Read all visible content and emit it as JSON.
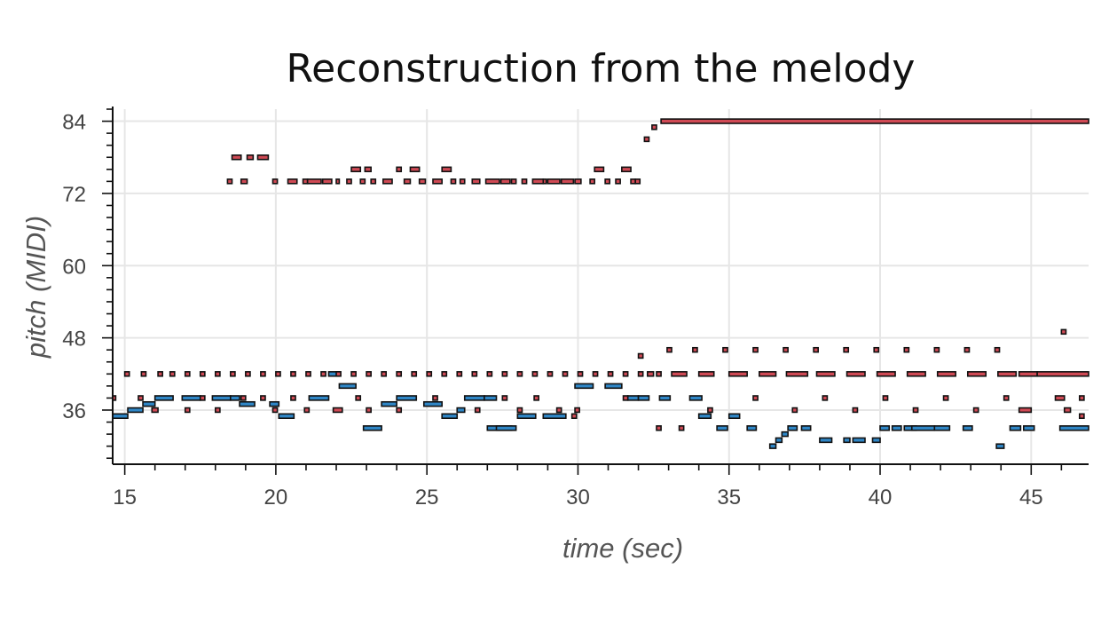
{
  "chart_data": {
    "type": "piano-roll",
    "title": "Reconstruction from the melody",
    "xlabel": "time (sec)",
    "ylabel": "pitch (MIDI)",
    "xlim": [
      14.6,
      46.9
    ],
    "ylim": [
      27,
      86
    ],
    "xticks": [
      15,
      20,
      25,
      30,
      35,
      40,
      45
    ],
    "yticks": [
      36,
      48,
      60,
      72,
      84
    ],
    "grid": true,
    "colors": {
      "melody": "#d04a55",
      "bass": "#2f86c6",
      "outline": "#111111",
      "grid": "#e6e6e6"
    },
    "series": [
      {
        "color_role": "melody",
        "notes": [
          [
            18.4,
            18.55,
            74
          ],
          [
            18.55,
            18.85,
            78
          ],
          [
            18.85,
            19.05,
            74
          ],
          [
            19.05,
            19.25,
            78
          ],
          [
            19.4,
            19.75,
            78
          ],
          [
            19.9,
            20.05,
            74
          ],
          [
            20.4,
            20.7,
            74
          ],
          [
            20.9,
            21.05,
            74
          ],
          [
            21.05,
            21.5,
            74
          ],
          [
            21.55,
            21.85,
            74
          ],
          [
            22.0,
            22.1,
            74
          ],
          [
            22.35,
            22.5,
            74
          ],
          [
            22.5,
            22.8,
            76
          ],
          [
            22.8,
            22.95,
            74
          ],
          [
            22.95,
            23.15,
            76
          ],
          [
            23.15,
            23.3,
            74
          ],
          [
            23.55,
            23.85,
            74
          ],
          [
            24.0,
            24.15,
            76
          ],
          [
            24.25,
            24.45,
            74
          ],
          [
            24.45,
            24.75,
            76
          ],
          [
            24.75,
            24.95,
            74
          ],
          [
            25.2,
            25.5,
            74
          ],
          [
            25.5,
            25.8,
            76
          ],
          [
            25.8,
            25.95,
            74
          ],
          [
            26.1,
            26.25,
            74
          ],
          [
            26.5,
            26.75,
            74
          ],
          [
            26.95,
            27.4,
            74
          ],
          [
            27.45,
            27.75,
            74
          ],
          [
            27.8,
            27.95,
            74
          ],
          [
            28.15,
            28.3,
            74
          ],
          [
            28.5,
            28.85,
            74
          ],
          [
            28.85,
            28.95,
            74
          ],
          [
            29.0,
            29.4,
            74
          ],
          [
            29.45,
            29.85,
            74
          ],
          [
            29.9,
            30.1,
            74
          ],
          [
            30.4,
            30.55,
            74
          ],
          [
            30.55,
            30.85,
            76
          ],
          [
            30.9,
            31.05,
            74
          ],
          [
            31.25,
            31.4,
            74
          ],
          [
            31.45,
            31.75,
            76
          ],
          [
            31.75,
            31.9,
            74
          ],
          [
            31.9,
            32.05,
            74
          ],
          [
            32.2,
            32.35,
            81
          ],
          [
            32.45,
            32.6,
            83
          ],
          [
            32.75,
            46.9,
            84
          ],
          [
            46.0,
            46.15,
            49
          ]
        ]
      },
      {
        "color_role": "bass",
        "notes": [
          [
            14.6,
            15.1,
            35
          ],
          [
            15.1,
            15.6,
            36
          ],
          [
            15.6,
            16.0,
            37
          ],
          [
            16.0,
            16.6,
            38
          ],
          [
            16.9,
            17.5,
            38
          ],
          [
            17.9,
            18.5,
            38
          ],
          [
            18.5,
            18.8,
            38
          ],
          [
            18.8,
            19.3,
            37
          ],
          [
            19.8,
            20.1,
            37
          ],
          [
            20.1,
            20.6,
            35
          ],
          [
            21.1,
            21.75,
            38
          ],
          [
            21.75,
            22.1,
            42
          ],
          [
            22.1,
            22.65,
            40
          ],
          [
            22.9,
            23.5,
            33
          ],
          [
            23.5,
            24.0,
            37
          ],
          [
            24.0,
            24.65,
            38
          ],
          [
            24.9,
            25.5,
            37
          ],
          [
            25.5,
            26.0,
            35
          ],
          [
            26.0,
            26.25,
            36
          ],
          [
            26.25,
            26.9,
            38
          ],
          [
            26.9,
            27.3,
            38
          ],
          [
            27.0,
            27.8,
            33
          ],
          [
            27.3,
            27.95,
            33
          ],
          [
            28.0,
            28.6,
            35
          ],
          [
            28.85,
            29.6,
            35
          ],
          [
            29.9,
            30.5,
            40
          ],
          [
            30.9,
            31.45,
            40
          ],
          [
            31.65,
            32.0,
            38
          ],
          [
            32.0,
            32.35,
            38
          ],
          [
            32.7,
            33.05,
            38
          ],
          [
            33.7,
            34.1,
            38
          ],
          [
            34.0,
            34.4,
            35
          ],
          [
            34.6,
            34.95,
            33
          ],
          [
            35.0,
            35.35,
            35
          ],
          [
            35.6,
            35.9,
            33
          ],
          [
            36.35,
            36.55,
            30
          ],
          [
            36.55,
            36.75,
            31
          ],
          [
            36.75,
            36.95,
            32
          ],
          [
            36.95,
            37.25,
            33
          ],
          [
            37.4,
            37.7,
            33
          ],
          [
            38.0,
            38.4,
            31
          ],
          [
            38.8,
            39.0,
            31
          ],
          [
            39.1,
            39.5,
            31
          ],
          [
            39.75,
            40.0,
            31
          ],
          [
            40.0,
            40.3,
            33
          ],
          [
            40.4,
            40.7,
            33
          ],
          [
            40.8,
            41.2,
            33
          ],
          [
            41.05,
            41.8,
            33
          ],
          [
            41.8,
            42.3,
            33
          ],
          [
            42.75,
            43.05,
            33
          ],
          [
            43.85,
            44.1,
            30
          ],
          [
            44.3,
            44.65,
            33
          ],
          [
            44.75,
            45.1,
            33
          ],
          [
            45.95,
            46.9,
            33
          ]
        ]
      },
      {
        "color_role": "melody",
        "notes": [
          [
            14.6,
            14.7,
            38
          ],
          [
            15.0,
            15.15,
            42
          ],
          [
            15.55,
            15.7,
            42
          ],
          [
            15.45,
            15.6,
            38
          ],
          [
            15.9,
            16.1,
            36
          ],
          [
            16.1,
            16.25,
            42
          ],
          [
            16.5,
            16.65,
            42
          ],
          [
            17.0,
            17.15,
            42
          ],
          [
            17.0,
            17.15,
            36
          ],
          [
            17.5,
            17.65,
            42
          ],
          [
            17.5,
            17.65,
            38
          ],
          [
            18.0,
            18.15,
            42
          ],
          [
            18.0,
            18.15,
            36
          ],
          [
            18.5,
            18.65,
            42
          ],
          [
            18.85,
            19.0,
            38
          ],
          [
            19.0,
            19.15,
            42
          ],
          [
            19.5,
            19.65,
            42
          ],
          [
            19.5,
            19.65,
            38
          ],
          [
            19.9,
            20.05,
            36
          ],
          [
            20.0,
            20.15,
            42
          ],
          [
            20.5,
            20.65,
            42
          ],
          [
            20.5,
            20.65,
            38
          ],
          [
            20.95,
            21.1,
            36
          ],
          [
            21.0,
            21.15,
            42
          ],
          [
            21.5,
            21.65,
            42
          ],
          [
            21.9,
            22.2,
            36
          ],
          [
            22.0,
            22.15,
            42
          ],
          [
            22.5,
            22.65,
            42
          ],
          [
            22.65,
            22.8,
            38
          ],
          [
            23.0,
            23.15,
            42
          ],
          [
            23.0,
            23.15,
            36
          ],
          [
            23.5,
            23.65,
            42
          ],
          [
            24.0,
            24.15,
            42
          ],
          [
            24.0,
            24.15,
            36
          ],
          [
            24.5,
            24.65,
            42
          ],
          [
            25.0,
            25.15,
            42
          ],
          [
            25.2,
            25.35,
            38
          ],
          [
            25.5,
            25.65,
            42
          ],
          [
            26.0,
            26.15,
            42
          ],
          [
            26.5,
            26.65,
            42
          ],
          [
            26.6,
            26.75,
            36
          ],
          [
            27.0,
            27.15,
            42
          ],
          [
            27.5,
            27.65,
            42
          ],
          [
            27.5,
            27.65,
            38
          ],
          [
            28.0,
            28.15,
            42
          ],
          [
            28.0,
            28.15,
            36
          ],
          [
            28.5,
            28.65,
            42
          ],
          [
            28.55,
            28.7,
            38
          ],
          [
            29.0,
            29.15,
            42
          ],
          [
            29.3,
            29.45,
            36
          ],
          [
            29.5,
            29.65,
            42
          ],
          [
            29.8,
            29.95,
            35
          ],
          [
            29.9,
            30.05,
            36
          ],
          [
            30.0,
            30.15,
            42
          ],
          [
            30.5,
            30.65,
            42
          ],
          [
            31.0,
            31.15,
            42
          ],
          [
            31.5,
            31.65,
            42
          ],
          [
            31.5,
            31.65,
            38
          ],
          [
            32.0,
            32.15,
            42
          ],
          [
            32.0,
            32.15,
            45
          ],
          [
            32.3,
            32.5,
            42
          ],
          [
            32.6,
            32.75,
            42
          ],
          [
            32.6,
            32.75,
            33
          ],
          [
            32.95,
            33.1,
            46
          ],
          [
            33.1,
            33.6,
            42
          ],
          [
            33.35,
            33.5,
            33
          ],
          [
            33.8,
            33.95,
            46
          ],
          [
            34.0,
            34.5,
            42
          ],
          [
            34.3,
            34.45,
            36
          ],
          [
            34.8,
            34.95,
            46
          ],
          [
            35.0,
            35.6,
            42
          ],
          [
            35.8,
            35.95,
            46
          ],
          [
            35.8,
            35.95,
            38
          ],
          [
            36.0,
            36.55,
            42
          ],
          [
            36.8,
            36.95,
            46
          ],
          [
            36.9,
            37.6,
            42
          ],
          [
            37.1,
            37.25,
            36
          ],
          [
            37.8,
            37.95,
            46
          ],
          [
            37.9,
            38.5,
            42
          ],
          [
            38.1,
            38.25,
            38
          ],
          [
            38.8,
            38.95,
            46
          ],
          [
            38.9,
            39.5,
            42
          ],
          [
            39.1,
            39.25,
            36
          ],
          [
            39.8,
            39.95,
            46
          ],
          [
            39.9,
            40.5,
            42
          ],
          [
            40.1,
            40.25,
            38
          ],
          [
            40.8,
            40.95,
            46
          ],
          [
            40.9,
            41.5,
            42
          ],
          [
            41.1,
            41.25,
            36
          ],
          [
            41.8,
            41.95,
            46
          ],
          [
            41.9,
            42.5,
            42
          ],
          [
            42.1,
            42.25,
            38
          ],
          [
            42.8,
            42.95,
            46
          ],
          [
            42.9,
            43.5,
            42
          ],
          [
            43.1,
            43.25,
            36
          ],
          [
            43.8,
            43.95,
            46
          ],
          [
            43.9,
            44.5,
            42
          ],
          [
            44.1,
            44.25,
            38
          ],
          [
            44.6,
            45.2,
            42
          ],
          [
            44.6,
            45.0,
            36
          ],
          [
            45.2,
            46.9,
            42
          ],
          [
            45.8,
            46.1,
            38
          ],
          [
            46.1,
            46.3,
            36
          ],
          [
            46.6,
            46.75,
            38
          ],
          [
            46.6,
            46.75,
            35
          ]
        ]
      }
    ]
  }
}
